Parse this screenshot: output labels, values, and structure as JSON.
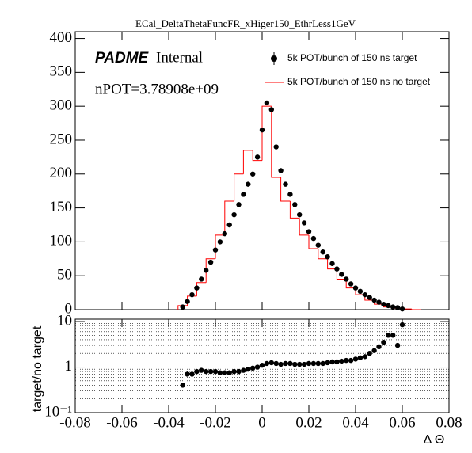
{
  "chart_data": [
    {
      "type": "histogram",
      "title": "ECal_DeltaThetaFuncFR_xHiger150_EthrLess1GeV",
      "annotations": {
        "experiment": "PADME",
        "status": "Internal",
        "npot": "nPOT=3.78908e+09"
      },
      "xlim": [
        -0.08,
        0.08
      ],
      "xticks": [
        -0.08,
        -0.06,
        -0.04,
        -0.02,
        0,
        0.02,
        0.04,
        0.06,
        0.08
      ],
      "ylim": [
        0,
        410
      ],
      "yticks": [
        0,
        50,
        100,
        150,
        200,
        250,
        300,
        350,
        400
      ],
      "series": [
        {
          "name": "5k POT/bunch of 150 ns target",
          "color": "#000000",
          "x": [
            -0.034,
            -0.032,
            -0.03,
            -0.028,
            -0.026,
            -0.024,
            -0.022,
            -0.02,
            -0.018,
            -0.016,
            -0.014,
            -0.012,
            -0.01,
            -0.008,
            -0.006,
            -0.004,
            -0.002,
            0,
            0.002,
            0.004,
            0.006,
            0.008,
            0.01,
            0.012,
            0.014,
            0.016,
            0.018,
            0.02,
            0.022,
            0.024,
            0.026,
            0.028,
            0.03,
            0.032,
            0.034,
            0.036,
            0.038,
            0.04,
            0.042,
            0.044,
            0.046,
            0.048,
            0.05,
            0.052,
            0.054,
            0.056,
            0.058,
            0.06
          ],
          "values": [
            4,
            12,
            22,
            32,
            45,
            58,
            70,
            88,
            100,
            112,
            125,
            140,
            155,
            170,
            185,
            200,
            225,
            265,
            305,
            295,
            240,
            205,
            185,
            170,
            155,
            140,
            128,
            115,
            105,
            95,
            85,
            78,
            68,
            60,
            52,
            45,
            38,
            32,
            27,
            22,
            18,
            14,
            11,
            8,
            6,
            4,
            3,
            1
          ]
        },
        {
          "name": "5k POT/bunch of 150 ns no target",
          "color": "#ff0000",
          "bins": [
            -0.036,
            -0.032,
            -0.028,
            -0.024,
            -0.02,
            -0.016,
            -0.012,
            -0.008,
            -0.004,
            0,
            0.004,
            0.008,
            0.012,
            0.016,
            0.02,
            0.024,
            0.028,
            0.032,
            0.036,
            0.04,
            0.044,
            0.048,
            0.052,
            0.056,
            0.06,
            0.064,
            0.068
          ],
          "values": [
            6,
            20,
            40,
            75,
            110,
            160,
            200,
            235,
            220,
            300,
            195,
            160,
            135,
            110,
            90,
            75,
            60,
            45,
            32,
            22,
            14,
            8,
            4,
            2,
            1,
            0
          ]
        }
      ]
    },
    {
      "type": "ratio",
      "x_label": "Δ Θ",
      "y_label": "target/no target",
      "xlim": [
        -0.08,
        0.08
      ],
      "xticks": [
        -0.08,
        -0.06,
        -0.04,
        -0.02,
        0,
        0.02,
        0.04,
        0.06,
        0.08
      ],
      "ylim": [
        0.1,
        11.3
      ],
      "log_y": true,
      "yticks": [
        {
          "value": 0.1,
          "label": "10⁻¹"
        },
        1,
        10
      ],
      "grid_lines": [
        0.2,
        0.3,
        0.4,
        0.5,
        0.6,
        0.7,
        0.8,
        0.9,
        1,
        2,
        3,
        4,
        5,
        6,
        7,
        8,
        9
      ],
      "color": "#000000",
      "x": [
        -0.034,
        -0.032,
        -0.03,
        -0.028,
        -0.026,
        -0.024,
        -0.022,
        -0.02,
        -0.018,
        -0.016,
        -0.014,
        -0.012,
        -0.01,
        -0.008,
        -0.006,
        -0.004,
        -0.002,
        0,
        0.002,
        0.004,
        0.006,
        0.008,
        0.01,
        0.012,
        0.014,
        0.016,
        0.018,
        0.02,
        0.022,
        0.024,
        0.026,
        0.028,
        0.03,
        0.032,
        0.034,
        0.036,
        0.038,
        0.04,
        0.042,
        0.044,
        0.046,
        0.048,
        0.05,
        0.052,
        0.054,
        0.056,
        0.058,
        0.06
      ],
      "values": [
        0.4,
        0.7,
        0.7,
        0.8,
        0.85,
        0.8,
        0.8,
        0.8,
        0.75,
        0.75,
        0.75,
        0.8,
        0.8,
        0.85,
        0.9,
        0.95,
        1.0,
        1.1,
        1.2,
        1.25,
        1.2,
        1.15,
        1.2,
        1.2,
        1.15,
        1.15,
        1.15,
        1.2,
        1.2,
        1.2,
        1.2,
        1.25,
        1.3,
        1.3,
        1.35,
        1.4,
        1.4,
        1.5,
        1.6,
        1.7,
        2.0,
        2.3,
        2.8,
        3.5,
        5,
        5,
        3,
        8.5
      ]
    }
  ]
}
